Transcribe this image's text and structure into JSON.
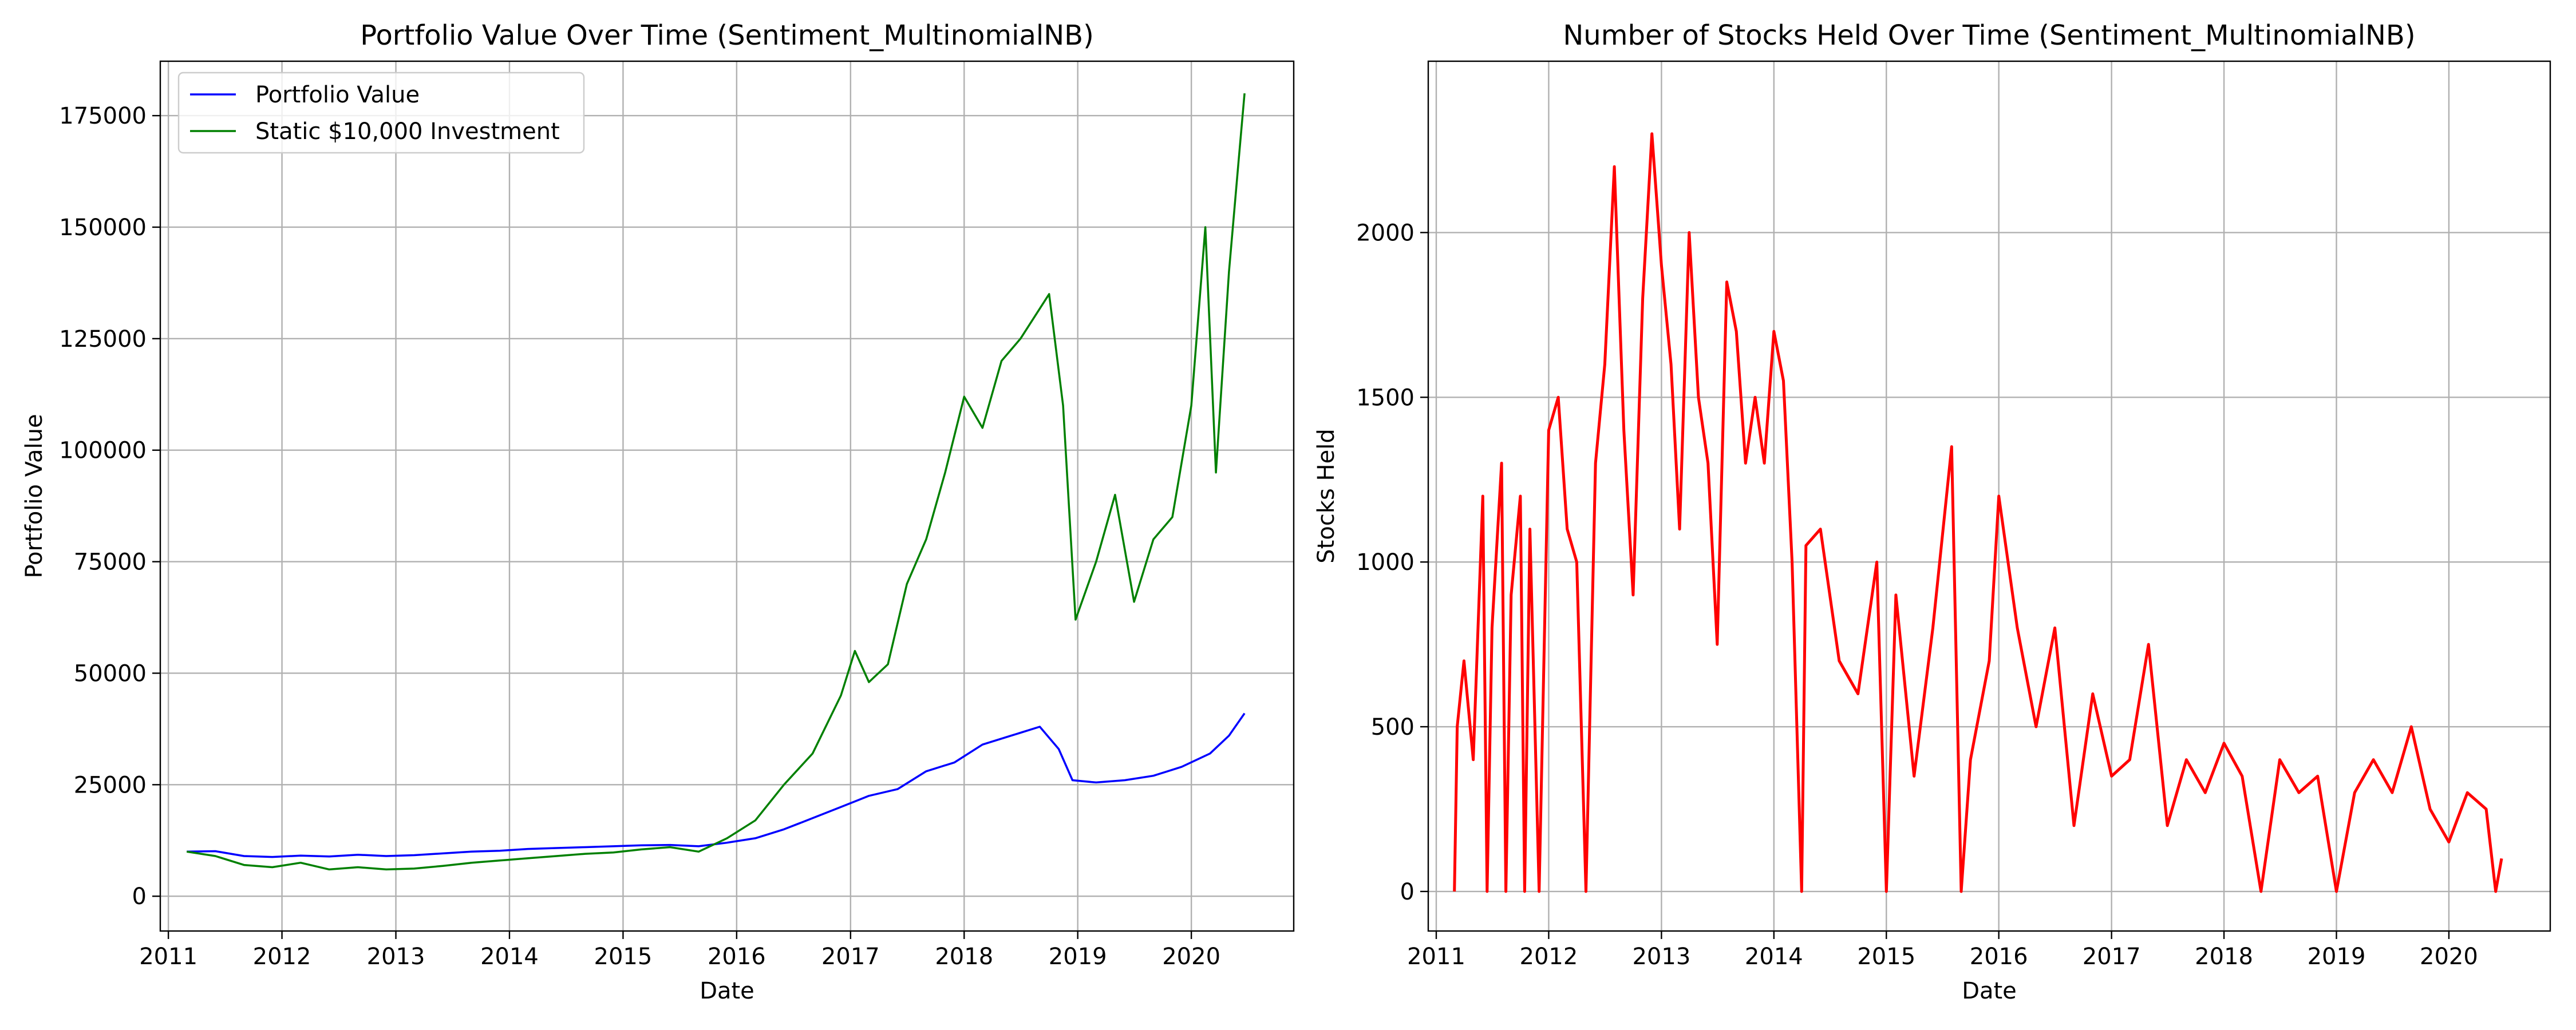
{
  "chart_data": [
    {
      "type": "line",
      "title": "Portfolio Value Over Time (Sentiment_MultinomialNB)",
      "xlabel": "Date",
      "ylabel": "Portfolio Value",
      "xlim": [
        "2010-12-06",
        "2020-11-25"
      ],
      "ylim": [
        -7800,
        187200
      ],
      "x_ticks": [
        "2011",
        "2012",
        "2013",
        "2014",
        "2015",
        "2016",
        "2017",
        "2018",
        "2019",
        "2020"
      ],
      "y_ticks": [
        0,
        25000,
        50000,
        75000,
        100000,
        125000,
        150000,
        175000
      ],
      "grid": true,
      "legend_position": "upper-left",
      "series": [
        {
          "name": "Portfolio Value",
          "color": "#0000ff",
          "points": [
            [
              "2011-03-01",
              10000
            ],
            [
              "2011-06-01",
              10100
            ],
            [
              "2011-09-01",
              9000
            ],
            [
              "2011-12-01",
              8800
            ],
            [
              "2012-03-01",
              9100
            ],
            [
              "2012-06-01",
              8900
            ],
            [
              "2012-09-01",
              9300
            ],
            [
              "2012-12-01",
              9000
            ],
            [
              "2013-03-01",
              9200
            ],
            [
              "2013-06-01",
              9600
            ],
            [
              "2013-09-01",
              10000
            ],
            [
              "2013-12-01",
              10200
            ],
            [
              "2014-03-01",
              10600
            ],
            [
              "2014-06-01",
              10800
            ],
            [
              "2014-09-01",
              11000
            ],
            [
              "2014-12-01",
              11200
            ],
            [
              "2015-03-01",
              11400
            ],
            [
              "2015-06-01",
              11500
            ],
            [
              "2015-09-01",
              11200
            ],
            [
              "2015-12-01",
              12000
            ],
            [
              "2016-03-01",
              13000
            ],
            [
              "2016-06-01",
              15000
            ],
            [
              "2016-09-01",
              17500
            ],
            [
              "2016-12-01",
              20000
            ],
            [
              "2017-03-01",
              22500
            ],
            [
              "2017-06-01",
              24000
            ],
            [
              "2017-09-01",
              28000
            ],
            [
              "2017-12-01",
              30000
            ],
            [
              "2018-03-01",
              34000
            ],
            [
              "2018-06-01",
              36000
            ],
            [
              "2018-09-01",
              38000
            ],
            [
              "2018-11-01",
              33000
            ],
            [
              "2018-12-15",
              26000
            ],
            [
              "2019-03-01",
              25500
            ],
            [
              "2019-06-01",
              26000
            ],
            [
              "2019-09-01",
              27000
            ],
            [
              "2019-12-01",
              29000
            ],
            [
              "2020-03-01",
              32000
            ],
            [
              "2020-05-01",
              36000
            ],
            [
              "2020-06-20",
              41000
            ]
          ]
        },
        {
          "name": "Static $10,000 Investment",
          "color": "#008000",
          "points": [
            [
              "2011-03-01",
              10000
            ],
            [
              "2011-06-01",
              9000
            ],
            [
              "2011-09-01",
              7000
            ],
            [
              "2011-12-01",
              6500
            ],
            [
              "2012-03-01",
              7500
            ],
            [
              "2012-06-01",
              6000
            ],
            [
              "2012-09-01",
              6500
            ],
            [
              "2012-12-01",
              6000
            ],
            [
              "2013-03-01",
              6200
            ],
            [
              "2013-06-01",
              6800
            ],
            [
              "2013-09-01",
              7500
            ],
            [
              "2013-12-01",
              8000
            ],
            [
              "2014-03-01",
              8500
            ],
            [
              "2014-06-01",
              9000
            ],
            [
              "2014-09-01",
              9500
            ],
            [
              "2014-12-01",
              9800
            ],
            [
              "2015-03-01",
              10500
            ],
            [
              "2015-06-01",
              11000
            ],
            [
              "2015-09-01",
              10000
            ],
            [
              "2015-12-01",
              13000
            ],
            [
              "2016-03-01",
              17000
            ],
            [
              "2016-06-01",
              25000
            ],
            [
              "2016-09-01",
              32000
            ],
            [
              "2016-12-01",
              45000
            ],
            [
              "2017-01-15",
              55000
            ],
            [
              "2017-03-01",
              48000
            ],
            [
              "2017-05-01",
              52000
            ],
            [
              "2017-07-01",
              70000
            ],
            [
              "2017-09-01",
              80000
            ],
            [
              "2017-11-01",
              95000
            ],
            [
              "2018-01-01",
              112000
            ],
            [
              "2018-03-01",
              105000
            ],
            [
              "2018-05-01",
              120000
            ],
            [
              "2018-07-01",
              125000
            ],
            [
              "2018-10-01",
              135000
            ],
            [
              "2018-11-15",
              110000
            ],
            [
              "2018-12-25",
              62000
            ],
            [
              "2019-03-01",
              75000
            ],
            [
              "2019-05-01",
              90000
            ],
            [
              "2019-07-01",
              66000
            ],
            [
              "2019-09-01",
              80000
            ],
            [
              "2019-11-01",
              85000
            ],
            [
              "2020-01-01",
              110000
            ],
            [
              "2020-02-15",
              150000
            ],
            [
              "2020-03-20",
              95000
            ],
            [
              "2020-05-01",
              140000
            ],
            [
              "2020-06-01",
              165000
            ],
            [
              "2020-06-20",
              180000
            ]
          ]
        }
      ]
    },
    {
      "type": "line",
      "title": "Number of Stocks Held Over Time (Sentiment_MultinomialNB)",
      "xlabel": "Date",
      "ylabel": "Stocks Held",
      "xlim": [
        "2010-12-06",
        "2020-11-25"
      ],
      "ylim": [
        -120,
        2520
      ],
      "x_ticks": [
        "2011",
        "2012",
        "2013",
        "2014",
        "2015",
        "2016",
        "2017",
        "2018",
        "2019",
        "2020"
      ],
      "y_ticks": [
        0,
        500,
        1000,
        1500,
        2000
      ],
      "grid": true,
      "series": [
        {
          "color": "#ff0000",
          "points": [
            [
              "2011-03-01",
              0
            ],
            [
              "2011-03-10",
              500
            ],
            [
              "2011-04-01",
              700
            ],
            [
              "2011-05-01",
              400
            ],
            [
              "2011-06-01",
              1200
            ],
            [
              "2011-06-15",
              0
            ],
            [
              "2011-07-01",
              800
            ],
            [
              "2011-08-01",
              1300
            ],
            [
              "2011-08-15",
              0
            ],
            [
              "2011-09-01",
              900
            ],
            [
              "2011-10-01",
              1200
            ],
            [
              "2011-10-15",
              0
            ],
            [
              "2011-11-01",
              1100
            ],
            [
              "2011-12-01",
              0
            ],
            [
              "2012-01-01",
              1400
            ],
            [
              "2012-02-01",
              1500
            ],
            [
              "2012-03-01",
              1100
            ],
            [
              "2012-04-01",
              1000
            ],
            [
              "2012-05-01",
              0
            ],
            [
              "2012-06-01",
              1300
            ],
            [
              "2012-07-01",
              1600
            ],
            [
              "2012-08-01",
              2200
            ],
            [
              "2012-09-01",
              1400
            ],
            [
              "2012-10-01",
              900
            ],
            [
              "2012-11-01",
              1800
            ],
            [
              "2012-12-01",
              2300
            ],
            [
              "2013-01-01",
              1900
            ],
            [
              "2013-02-01",
              1600
            ],
            [
              "2013-03-01",
              1100
            ],
            [
              "2013-04-01",
              2000
            ],
            [
              "2013-05-01",
              1500
            ],
            [
              "2013-06-01",
              1300
            ],
            [
              "2013-07-01",
              750
            ],
            [
              "2013-08-01",
              1850
            ],
            [
              "2013-09-01",
              1700
            ],
            [
              "2013-10-01",
              1300
            ],
            [
              "2013-11-01",
              1500
            ],
            [
              "2013-12-01",
              1300
            ],
            [
              "2014-01-01",
              1700
            ],
            [
              "2014-02-01",
              1550
            ],
            [
              "2014-03-01",
              1000
            ],
            [
              "2014-04-01",
              0
            ],
            [
              "2014-04-15",
              1050
            ],
            [
              "2014-06-01",
              1100
            ],
            [
              "2014-08-01",
              700
            ],
            [
              "2014-10-01",
              600
            ],
            [
              "2014-12-01",
              1000
            ],
            [
              "2015-01-01",
              0
            ],
            [
              "2015-02-01",
              900
            ],
            [
              "2015-04-01",
              350
            ],
            [
              "2015-06-01",
              800
            ],
            [
              "2015-08-01",
              1350
            ],
            [
              "2015-09-01",
              0
            ],
            [
              "2015-10-01",
              400
            ],
            [
              "2015-12-01",
              700
            ],
            [
              "2016-01-01",
              1200
            ],
            [
              "2016-03-01",
              800
            ],
            [
              "2016-05-01",
              500
            ],
            [
              "2016-07-01",
              800
            ],
            [
              "2016-09-01",
              200
            ],
            [
              "2016-11-01",
              600
            ],
            [
              "2017-01-01",
              350
            ],
            [
              "2017-03-01",
              400
            ],
            [
              "2017-05-01",
              750
            ],
            [
              "2017-07-01",
              200
            ],
            [
              "2017-09-01",
              400
            ],
            [
              "2017-11-01",
              300
            ],
            [
              "2018-01-01",
              450
            ],
            [
              "2018-03-01",
              350
            ],
            [
              "2018-05-01",
              0
            ],
            [
              "2018-07-01",
              400
            ],
            [
              "2018-09-01",
              300
            ],
            [
              "2018-11-01",
              350
            ],
            [
              "2019-01-01",
              0
            ],
            [
              "2019-03-01",
              300
            ],
            [
              "2019-05-01",
              400
            ],
            [
              "2019-07-01",
              300
            ],
            [
              "2019-09-01",
              500
            ],
            [
              "2019-11-01",
              250
            ],
            [
              "2020-01-01",
              150
            ],
            [
              "2020-03-01",
              300
            ],
            [
              "2020-05-01",
              250
            ],
            [
              "2020-06-01",
              0
            ],
            [
              "2020-06-20",
              100
            ]
          ]
        }
      ]
    }
  ]
}
